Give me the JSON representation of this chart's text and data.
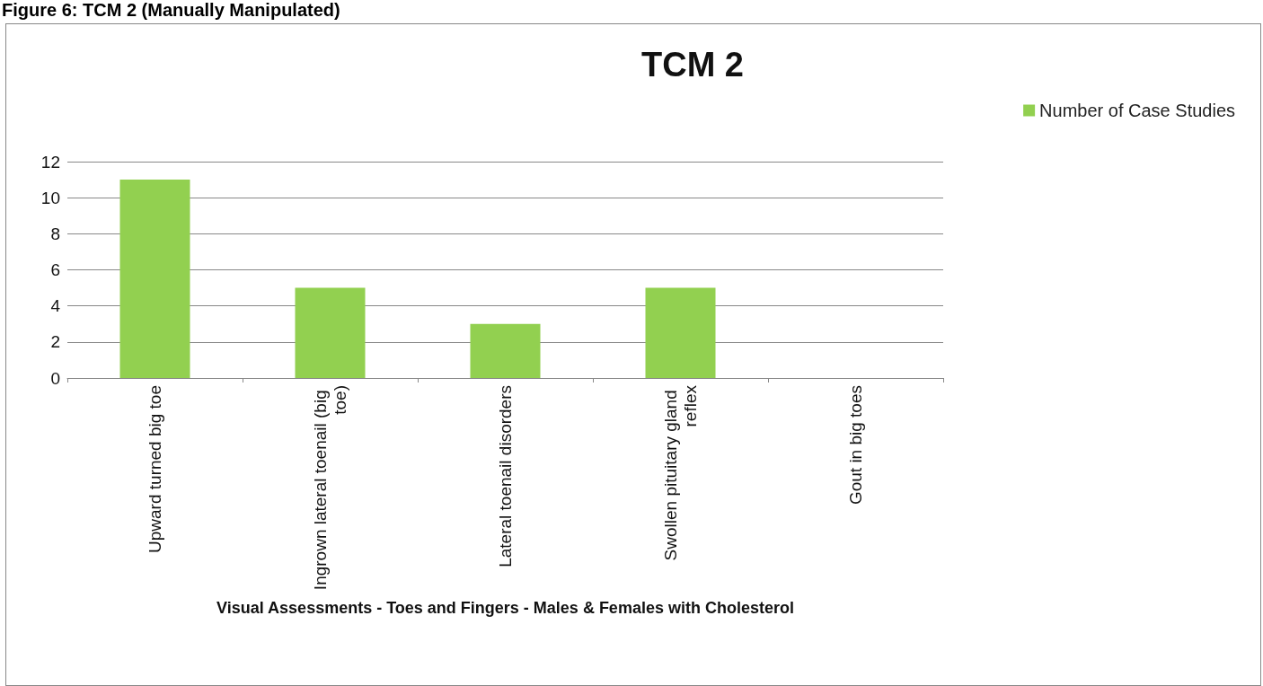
{
  "chart_data": {
    "type": "bar",
    "title": "TCM 2",
    "xlabel": "Visual Assessments - Toes and Fingers - Males & Females with Cholesterol",
    "annotations": [
      "Figure 6: TCM 2 (Manually Manipulated)"
    ],
    "categories": [
      "Upward turned big toe",
      "Ingrown lateral toenail (big toe)",
      "Lateral toenail disorders",
      "Swollen pituitary gland reflex",
      "Gout in big toes"
    ],
    "series": [
      {
        "name": "Number of Case Studies",
        "color": "#92d050",
        "values": [
          11,
          5,
          3,
          5,
          0
        ]
      }
    ],
    "ylim": [
      0,
      12
    ],
    "yticks": [
      0,
      2,
      4,
      6,
      8,
      10,
      12
    ],
    "grid": "y",
    "legend": "top right"
  }
}
